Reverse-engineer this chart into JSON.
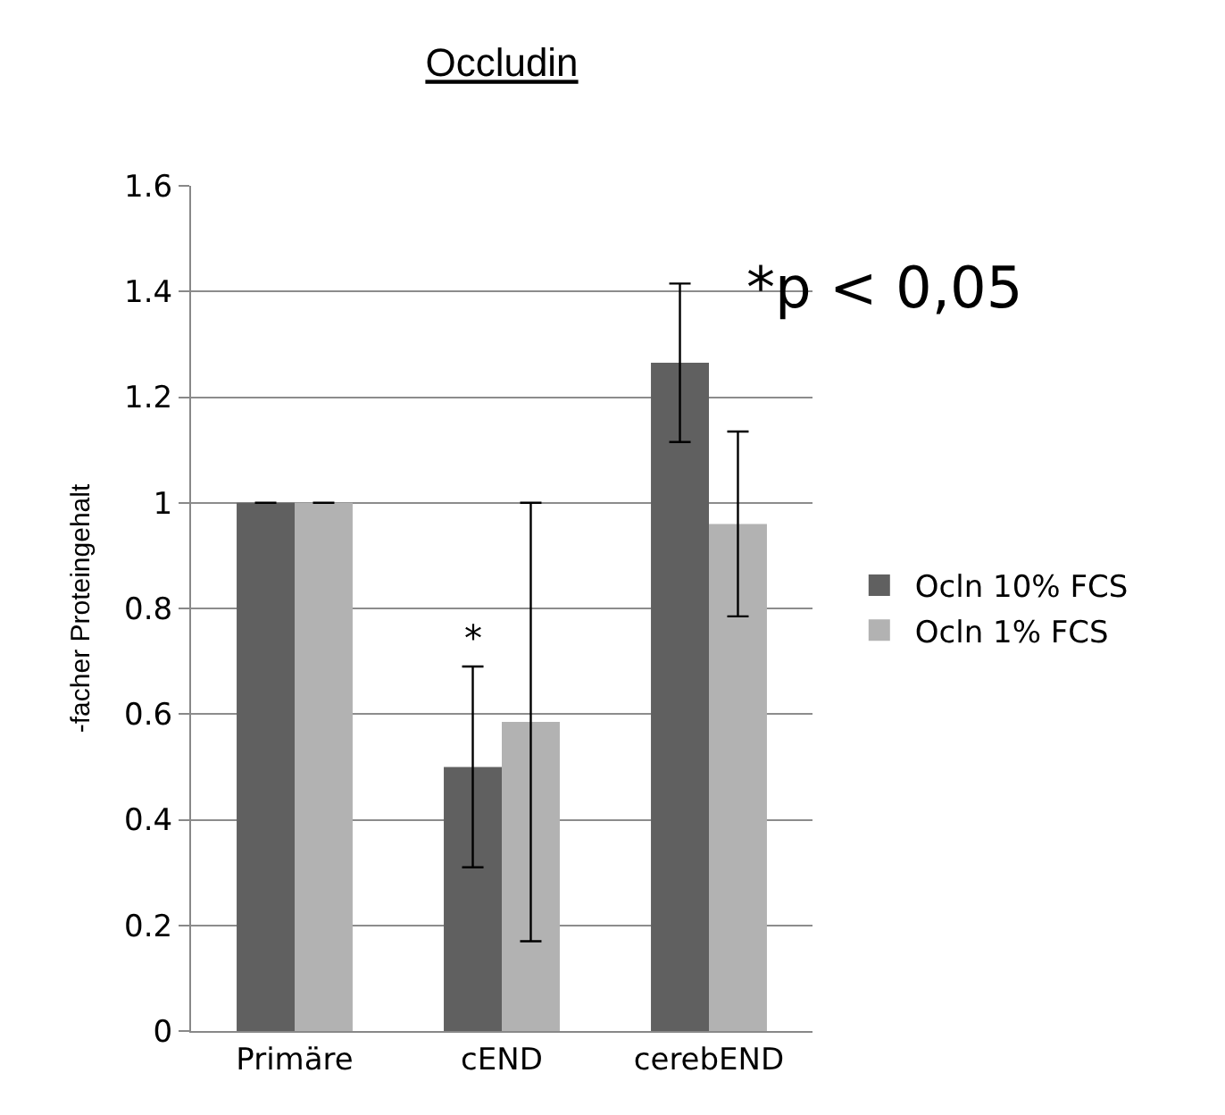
{
  "chart_data": {
    "type": "bar",
    "title": "Occludin",
    "ylabel": "-facher Proteingehalt",
    "categories": [
      "Primäre",
      "cEND",
      "cerebEND"
    ],
    "series": [
      {
        "name": "Ocln 10% FCS",
        "color": "#606060",
        "values": [
          1,
          0.5,
          1.265
        ],
        "errors": [
          0,
          0.19,
          0.15
        ]
      },
      {
        "name": "Ocln 1% FCS",
        "color": "#b2b2b2",
        "values": [
          1,
          0.585,
          0.96
        ],
        "errors": [
          0,
          0.415,
          0.175
        ]
      }
    ],
    "ylim": [
      0,
      1.6
    ],
    "yticks": [
      0,
      {
        "value": 0.2,
        "label": "0.2"
      },
      {
        "value": 0.4,
        "label": "0.4"
      },
      {
        "value": 0.6,
        "label": "0.6"
      },
      {
        "value": 0.8,
        "label": "0.8"
      },
      1,
      {
        "value": 1.2,
        "label": "1.2"
      },
      {
        "value": 1.4,
        "label": "1.4"
      },
      {
        "value": 1.6,
        "label": "1.6"
      }
    ],
    "grid": "y",
    "legend": "right",
    "annotations": [
      "*",
      "*p < 0,05"
    ]
  }
}
